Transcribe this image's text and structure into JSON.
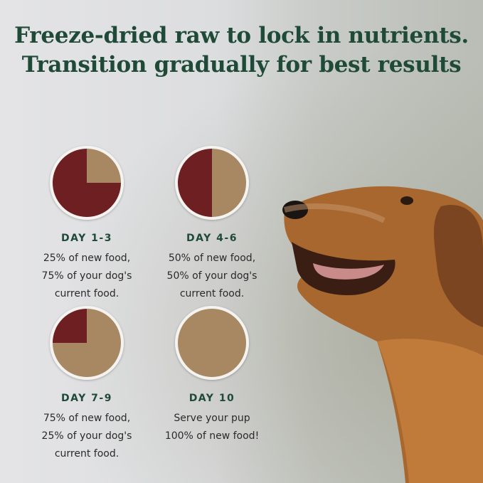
{
  "headline": "Freeze-dried raw to lock in nutrients. Transition gradually for best results",
  "colors": {
    "heading": "#1f4a38",
    "new_food": "#a88763",
    "current_food": "#6e1f22"
  },
  "steps": [
    {
      "day": "DAY 1-3",
      "new_food_percent": 25,
      "lines": [
        "25% of new food,",
        "75% of your dog's",
        "current food."
      ]
    },
    {
      "day": "DAY 4-6",
      "new_food_percent": 50,
      "lines": [
        "50% of new food,",
        "50% of your dog's",
        "current food."
      ]
    },
    {
      "day": "DAY 7-9",
      "new_food_percent": 75,
      "lines": [
        "75% of new food,",
        "25% of your dog's",
        "current food."
      ]
    },
    {
      "day": "DAY 10",
      "new_food_percent": 100,
      "lines": [
        "Serve your pup",
        "100% of new food!"
      ]
    }
  ]
}
